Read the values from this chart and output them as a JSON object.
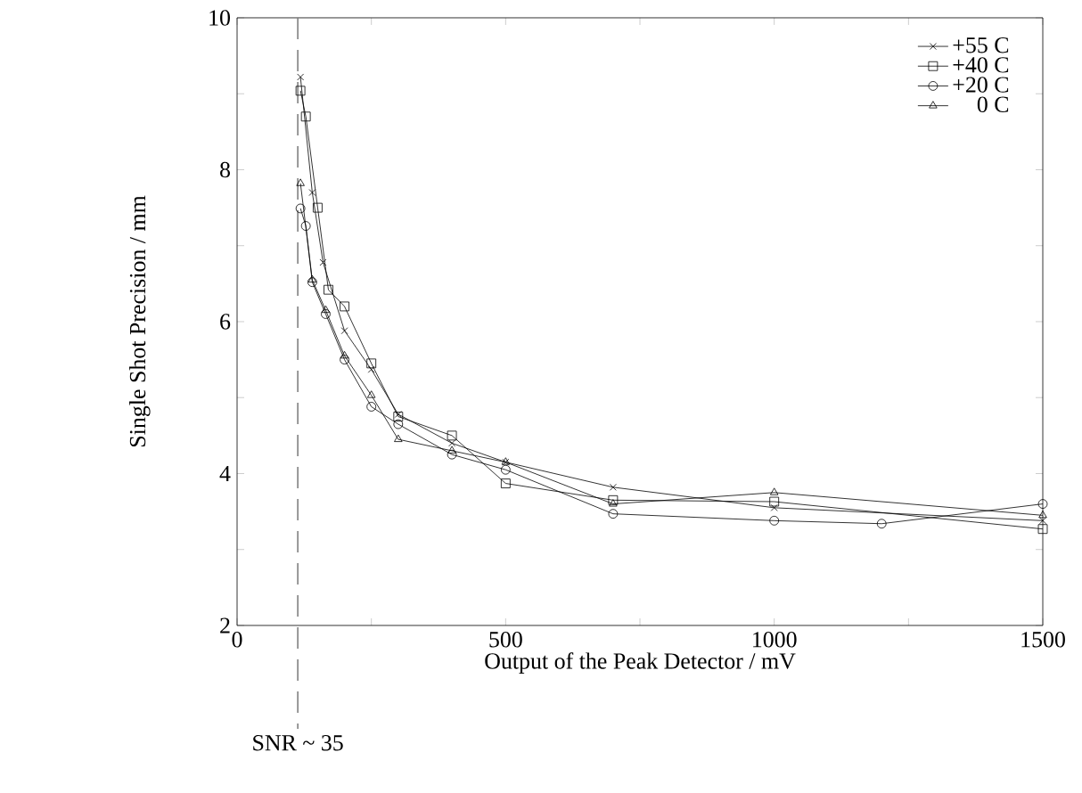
{
  "chart_data": {
    "type": "line",
    "xlabel": "Output of the Peak Detector / mV",
    "ylabel": "Single Shot Precision / mm",
    "xlim": [
      0,
      1500
    ],
    "ylim": [
      2,
      10
    ],
    "xticks": [
      0,
      {
        "value": 250,
        "label": null
      },
      500,
      {
        "value": 750,
        "label": null
      },
      1000,
      {
        "value": 1250,
        "label": null
      },
      1500
    ],
    "yticks": [
      2,
      {
        "value": 3,
        "label": null
      },
      4,
      {
        "value": 5,
        "label": null
      },
      6,
      {
        "value": 7,
        "label": null
      },
      8,
      {
        "value": 9,
        "label": null
      },
      10
    ],
    "legend": "top right",
    "grid": false,
    "line_style": "solid",
    "series": [
      {
        "name": "+55 C",
        "color": "#000000",
        "marker": "cross",
        "x": [
          118,
          140,
          160,
          200,
          250,
          300,
          400,
          500,
          700,
          1000,
          1500
        ],
        "values": [
          9.22,
          7.7,
          6.78,
          5.88,
          5.37,
          4.78,
          4.4,
          4.15,
          3.82,
          3.55,
          3.38
        ]
      },
      {
        "name": "+40 C",
        "color": "#000000",
        "marker": "square",
        "x": [
          118,
          128,
          150,
          170,
          200,
          250,
          300,
          400,
          500,
          700,
          1000,
          1500
        ],
        "values": [
          9.04,
          8.7,
          7.5,
          6.42,
          6.2,
          5.45,
          4.75,
          4.5,
          3.87,
          3.65,
          3.63,
          3.27
        ]
      },
      {
        "name": "+20 C",
        "color": "#000000",
        "marker": "circle",
        "x": [
          118,
          128,
          140,
          165,
          200,
          250,
          300,
          400,
          500,
          700,
          1000,
          1200,
          1500
        ],
        "values": [
          7.49,
          7.26,
          6.52,
          6.1,
          5.5,
          4.88,
          4.65,
          4.25,
          4.05,
          3.47,
          3.38,
          3.34,
          3.6
        ]
      },
      {
        "name": "0 C",
        "color": "#000000",
        "marker": "triangle",
        "x": [
          118,
          140,
          165,
          200,
          250,
          300,
          400,
          500,
          700,
          1000,
          1500
        ],
        "values": [
          7.82,
          6.55,
          6.15,
          5.55,
          5.03,
          4.45,
          4.3,
          4.15,
          3.6,
          3.75,
          3.45
        ]
      }
    ],
    "ref_lines": [
      {
        "axis": "x",
        "value": 113,
        "label": "SNR ~ 35",
        "color": "#808080",
        "line_style": "dashed"
      }
    ]
  }
}
